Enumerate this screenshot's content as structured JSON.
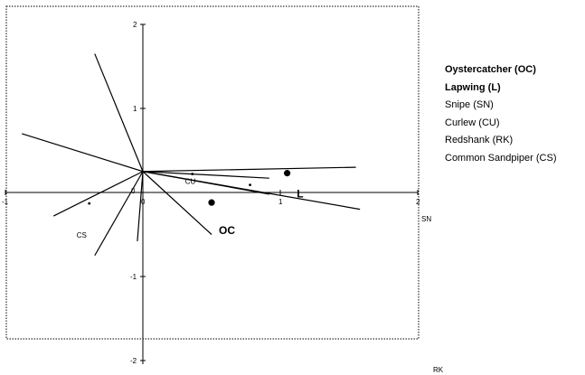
{
  "chart_data": {
    "type": "scatter",
    "axes": {
      "x": {
        "label": "SN",
        "ticks": [
          "-1",
          "0",
          "1",
          "2"
        ],
        "range": [
          -1,
          2
        ]
      },
      "y": {
        "label": "RK",
        "ticks": [
          "-2",
          "-1",
          "1",
          "2"
        ],
        "range": [
          -2,
          2
        ]
      },
      "origin_label": "0"
    },
    "vectors_origin": [
      0,
      0.25
    ],
    "vectors": [
      [
        -0.35,
        1.65
      ],
      [
        -0.88,
        0.7
      ],
      [
        -0.65,
        -0.28
      ],
      [
        -0.35,
        -0.75
      ],
      [
        -0.04,
        -0.58
      ],
      [
        0.5,
        -0.5
      ],
      [
        1.55,
        0.3
      ],
      [
        0.92,
        0.17
      ],
      [
        0.92,
        -0.02
      ],
      [
        1.58,
        -0.2
      ]
    ],
    "points": [
      {
        "x": 1.05,
        "y": 0.23,
        "size": "large",
        "label": ""
      },
      {
        "x": 0.5,
        "y": -0.12,
        "size": "large",
        "label": "OC"
      },
      {
        "x": 0.36,
        "y": 0.22,
        "size": "small",
        "label": "CU"
      },
      {
        "x": 0.78,
        "y": 0.09,
        "size": "small",
        "label": ""
      },
      {
        "x": -0.39,
        "y": -0.13,
        "size": "small",
        "label": "CS"
      }
    ],
    "annotations": [
      {
        "text": "L",
        "x": 1.12,
        "y": -0.06
      }
    ],
    "legend": {
      "placement": "right",
      "entries": [
        {
          "text": "Oystercatcher (OC)",
          "bold": true
        },
        {
          "text": "Lapwing (L)",
          "bold": true
        },
        {
          "text": "Snipe (SN)",
          "bold": false
        },
        {
          "text": "Curlew (CU)",
          "bold": false
        },
        {
          "text": "Redshank (RK)",
          "bold": false
        },
        {
          "text": "Common Sandpiper (CS)",
          "bold": false
        }
      ]
    },
    "grid": false,
    "frame": "dotted"
  }
}
